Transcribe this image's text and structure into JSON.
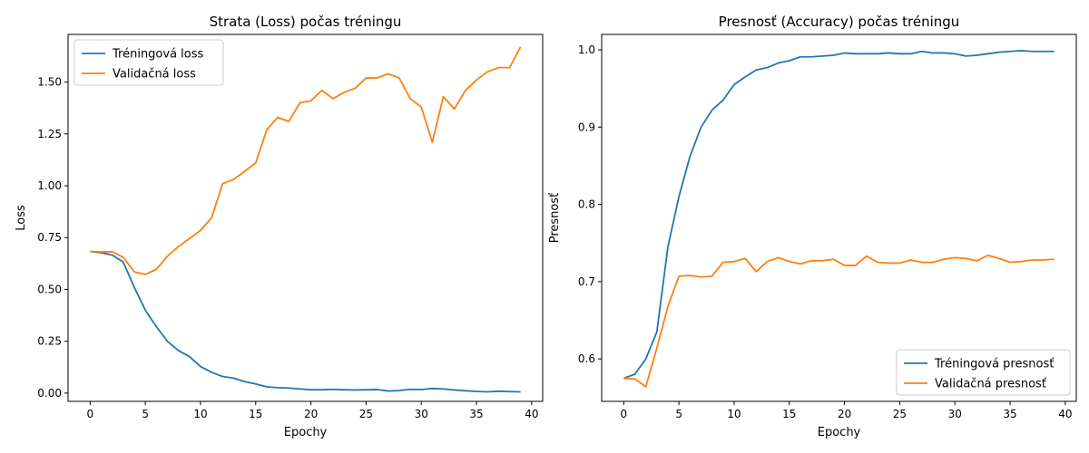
{
  "chart_data": [
    {
      "type": "line",
      "title": "Strata (Loss) počas tréningu",
      "xlabel": "Epochy",
      "ylabel": "Loss",
      "xlim": [
        -2,
        41
      ],
      "ylim": [
        -0.04,
        1.73
      ],
      "x_ticks": [
        0,
        5,
        10,
        15,
        20,
        25,
        30,
        35,
        40
      ],
      "y_ticks": [
        0.0,
        0.25,
        0.5,
        0.75,
        1.0,
        1.25,
        1.5
      ],
      "y_tick_labels": [
        "0.00",
        "0.25",
        "0.50",
        "0.75",
        "1.00",
        "1.25",
        "1.50"
      ],
      "legend_position": "upper-left",
      "grid": false,
      "x": [
        0,
        1,
        2,
        3,
        4,
        5,
        6,
        7,
        8,
        9,
        10,
        11,
        12,
        13,
        14,
        15,
        16,
        17,
        18,
        19,
        20,
        21,
        22,
        23,
        24,
        25,
        26,
        27,
        28,
        29,
        30,
        31,
        32,
        33,
        34,
        35,
        36,
        37,
        38,
        39
      ],
      "series": [
        {
          "name": "Tréningová loss",
          "color": "#1f77b4",
          "values": [
            0.683,
            0.677,
            0.666,
            0.632,
            0.51,
            0.4,
            0.32,
            0.25,
            0.205,
            0.176,
            0.128,
            0.1,
            0.08,
            0.072,
            0.055,
            0.044,
            0.03,
            0.026,
            0.024,
            0.02,
            0.016,
            0.016,
            0.018,
            0.016,
            0.015,
            0.016,
            0.017,
            0.01,
            0.012,
            0.018,
            0.017,
            0.022,
            0.02,
            0.015,
            0.011,
            0.008,
            0.006,
            0.009,
            0.007,
            0.006
          ]
        },
        {
          "name": "Validačná loss",
          "color": "#ff7f0e",
          "values": [
            0.683,
            0.681,
            0.682,
            0.655,
            0.585,
            0.572,
            0.597,
            0.66,
            0.707,
            0.745,
            0.785,
            0.845,
            1.01,
            1.03,
            1.07,
            1.11,
            1.27,
            1.33,
            1.31,
            1.4,
            1.41,
            1.46,
            1.42,
            1.45,
            1.47,
            1.52,
            1.52,
            1.54,
            1.52,
            1.42,
            1.38,
            1.21,
            1.43,
            1.37,
            1.46,
            1.51,
            1.55,
            1.57,
            1.57,
            1.67
          ]
        }
      ]
    },
    {
      "type": "line",
      "title": "Presnosť (Accuracy) počas tréningu",
      "xlabel": "Epochy",
      "ylabel": "Presnosť",
      "xlim": [
        -2,
        41
      ],
      "ylim": [
        0.545,
        1.02
      ],
      "x_ticks": [
        0,
        5,
        10,
        15,
        20,
        25,
        30,
        35,
        40
      ],
      "y_ticks": [
        0.6,
        0.7,
        0.8,
        0.9,
        1.0
      ],
      "y_tick_labels": [
        "0.6",
        "0.7",
        "0.8",
        "0.9",
        "1.0"
      ],
      "legend_position": "lower-right",
      "grid": false,
      "x": [
        0,
        1,
        2,
        3,
        4,
        5,
        6,
        7,
        8,
        9,
        10,
        11,
        12,
        13,
        14,
        15,
        16,
        17,
        18,
        19,
        20,
        21,
        22,
        23,
        24,
        25,
        26,
        27,
        28,
        29,
        30,
        31,
        32,
        33,
        34,
        35,
        36,
        37,
        38,
        39
      ],
      "series": [
        {
          "name": "Tréningová presnosť",
          "color": "#1f77b4",
          "values": [
            0.575,
            0.58,
            0.6,
            0.635,
            0.745,
            0.81,
            0.862,
            0.9,
            0.922,
            0.935,
            0.955,
            0.965,
            0.974,
            0.977,
            0.983,
            0.986,
            0.991,
            0.991,
            0.992,
            0.993,
            0.996,
            0.995,
            0.995,
            0.995,
            0.996,
            0.995,
            0.995,
            0.998,
            0.996,
            0.996,
            0.995,
            0.992,
            0.993,
            0.995,
            0.997,
            0.998,
            0.999,
            0.998,
            0.998,
            0.998
          ]
        },
        {
          "name": "Validačná presnosť",
          "color": "#ff7f0e",
          "values": [
            0.575,
            0.574,
            0.564,
            0.614,
            0.668,
            0.707,
            0.708,
            0.706,
            0.707,
            0.725,
            0.726,
            0.73,
            0.713,
            0.726,
            0.731,
            0.726,
            0.723,
            0.727,
            0.727,
            0.729,
            0.721,
            0.721,
            0.733,
            0.725,
            0.724,
            0.724,
            0.728,
            0.725,
            0.725,
            0.729,
            0.731,
            0.73,
            0.727,
            0.734,
            0.73,
            0.725,
            0.726,
            0.728,
            0.728,
            0.729
          ]
        }
      ]
    }
  ]
}
